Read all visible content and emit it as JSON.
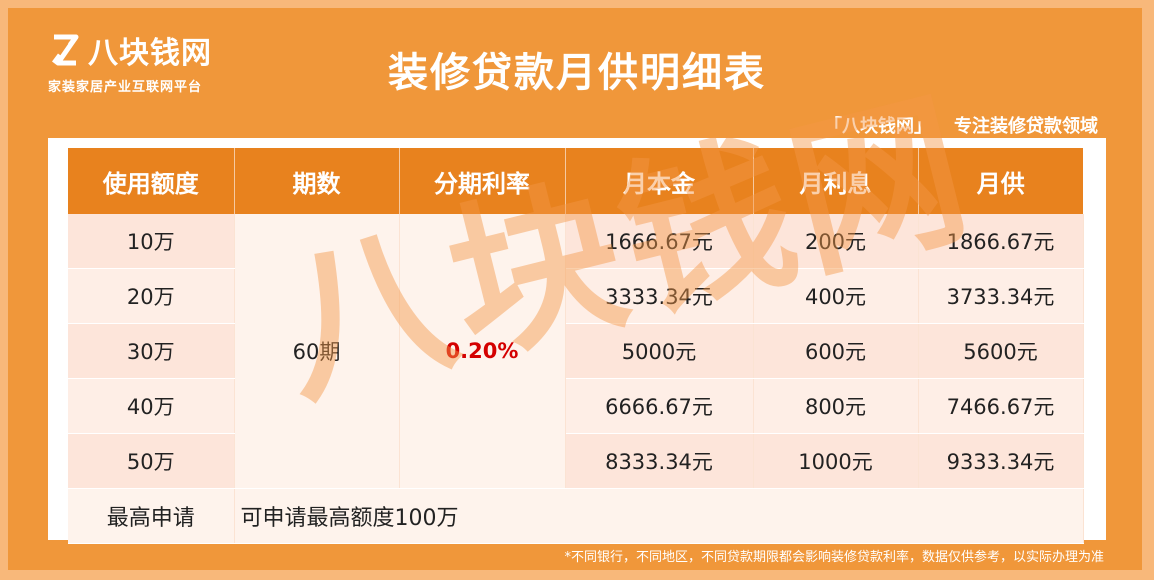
{
  "logo": {
    "name": "八块钱网",
    "tagline": "家装家居产业互联网平台"
  },
  "title": "装修贷款月供明细表",
  "slogan": {
    "brand": "「八块钱网」",
    "text": "专注装修贷款领域"
  },
  "table": {
    "headers": [
      "使用额度",
      "期数",
      "分期利率",
      "月本金",
      "月利息",
      "月供"
    ],
    "term": "60期",
    "rate": "0.20%",
    "rows": [
      {
        "amount": "10万",
        "principal": "1666.67元",
        "interest": "200元",
        "payment": "1866.67元"
      },
      {
        "amount": "20万",
        "principal": "3333.34元",
        "interest": "400元",
        "payment": "3733.34元"
      },
      {
        "amount": "30万",
        "principal": "5000元",
        "interest": "600元",
        "payment": "5600元"
      },
      {
        "amount": "40万",
        "principal": "6666.67元",
        "interest": "800元",
        "payment": "7466.67元"
      },
      {
        "amount": "50万",
        "principal": "8333.34元",
        "interest": "1000元",
        "payment": "9333.34元"
      }
    ],
    "footer": {
      "label": "最高申请",
      "text": "可申请最高额度100万"
    }
  },
  "watermark": "八块钱网",
  "footnote": "*不同银行，不同地区，不同贷款期限都会影响装修贷款利率，数据仅供参考，以实际办理为准"
}
